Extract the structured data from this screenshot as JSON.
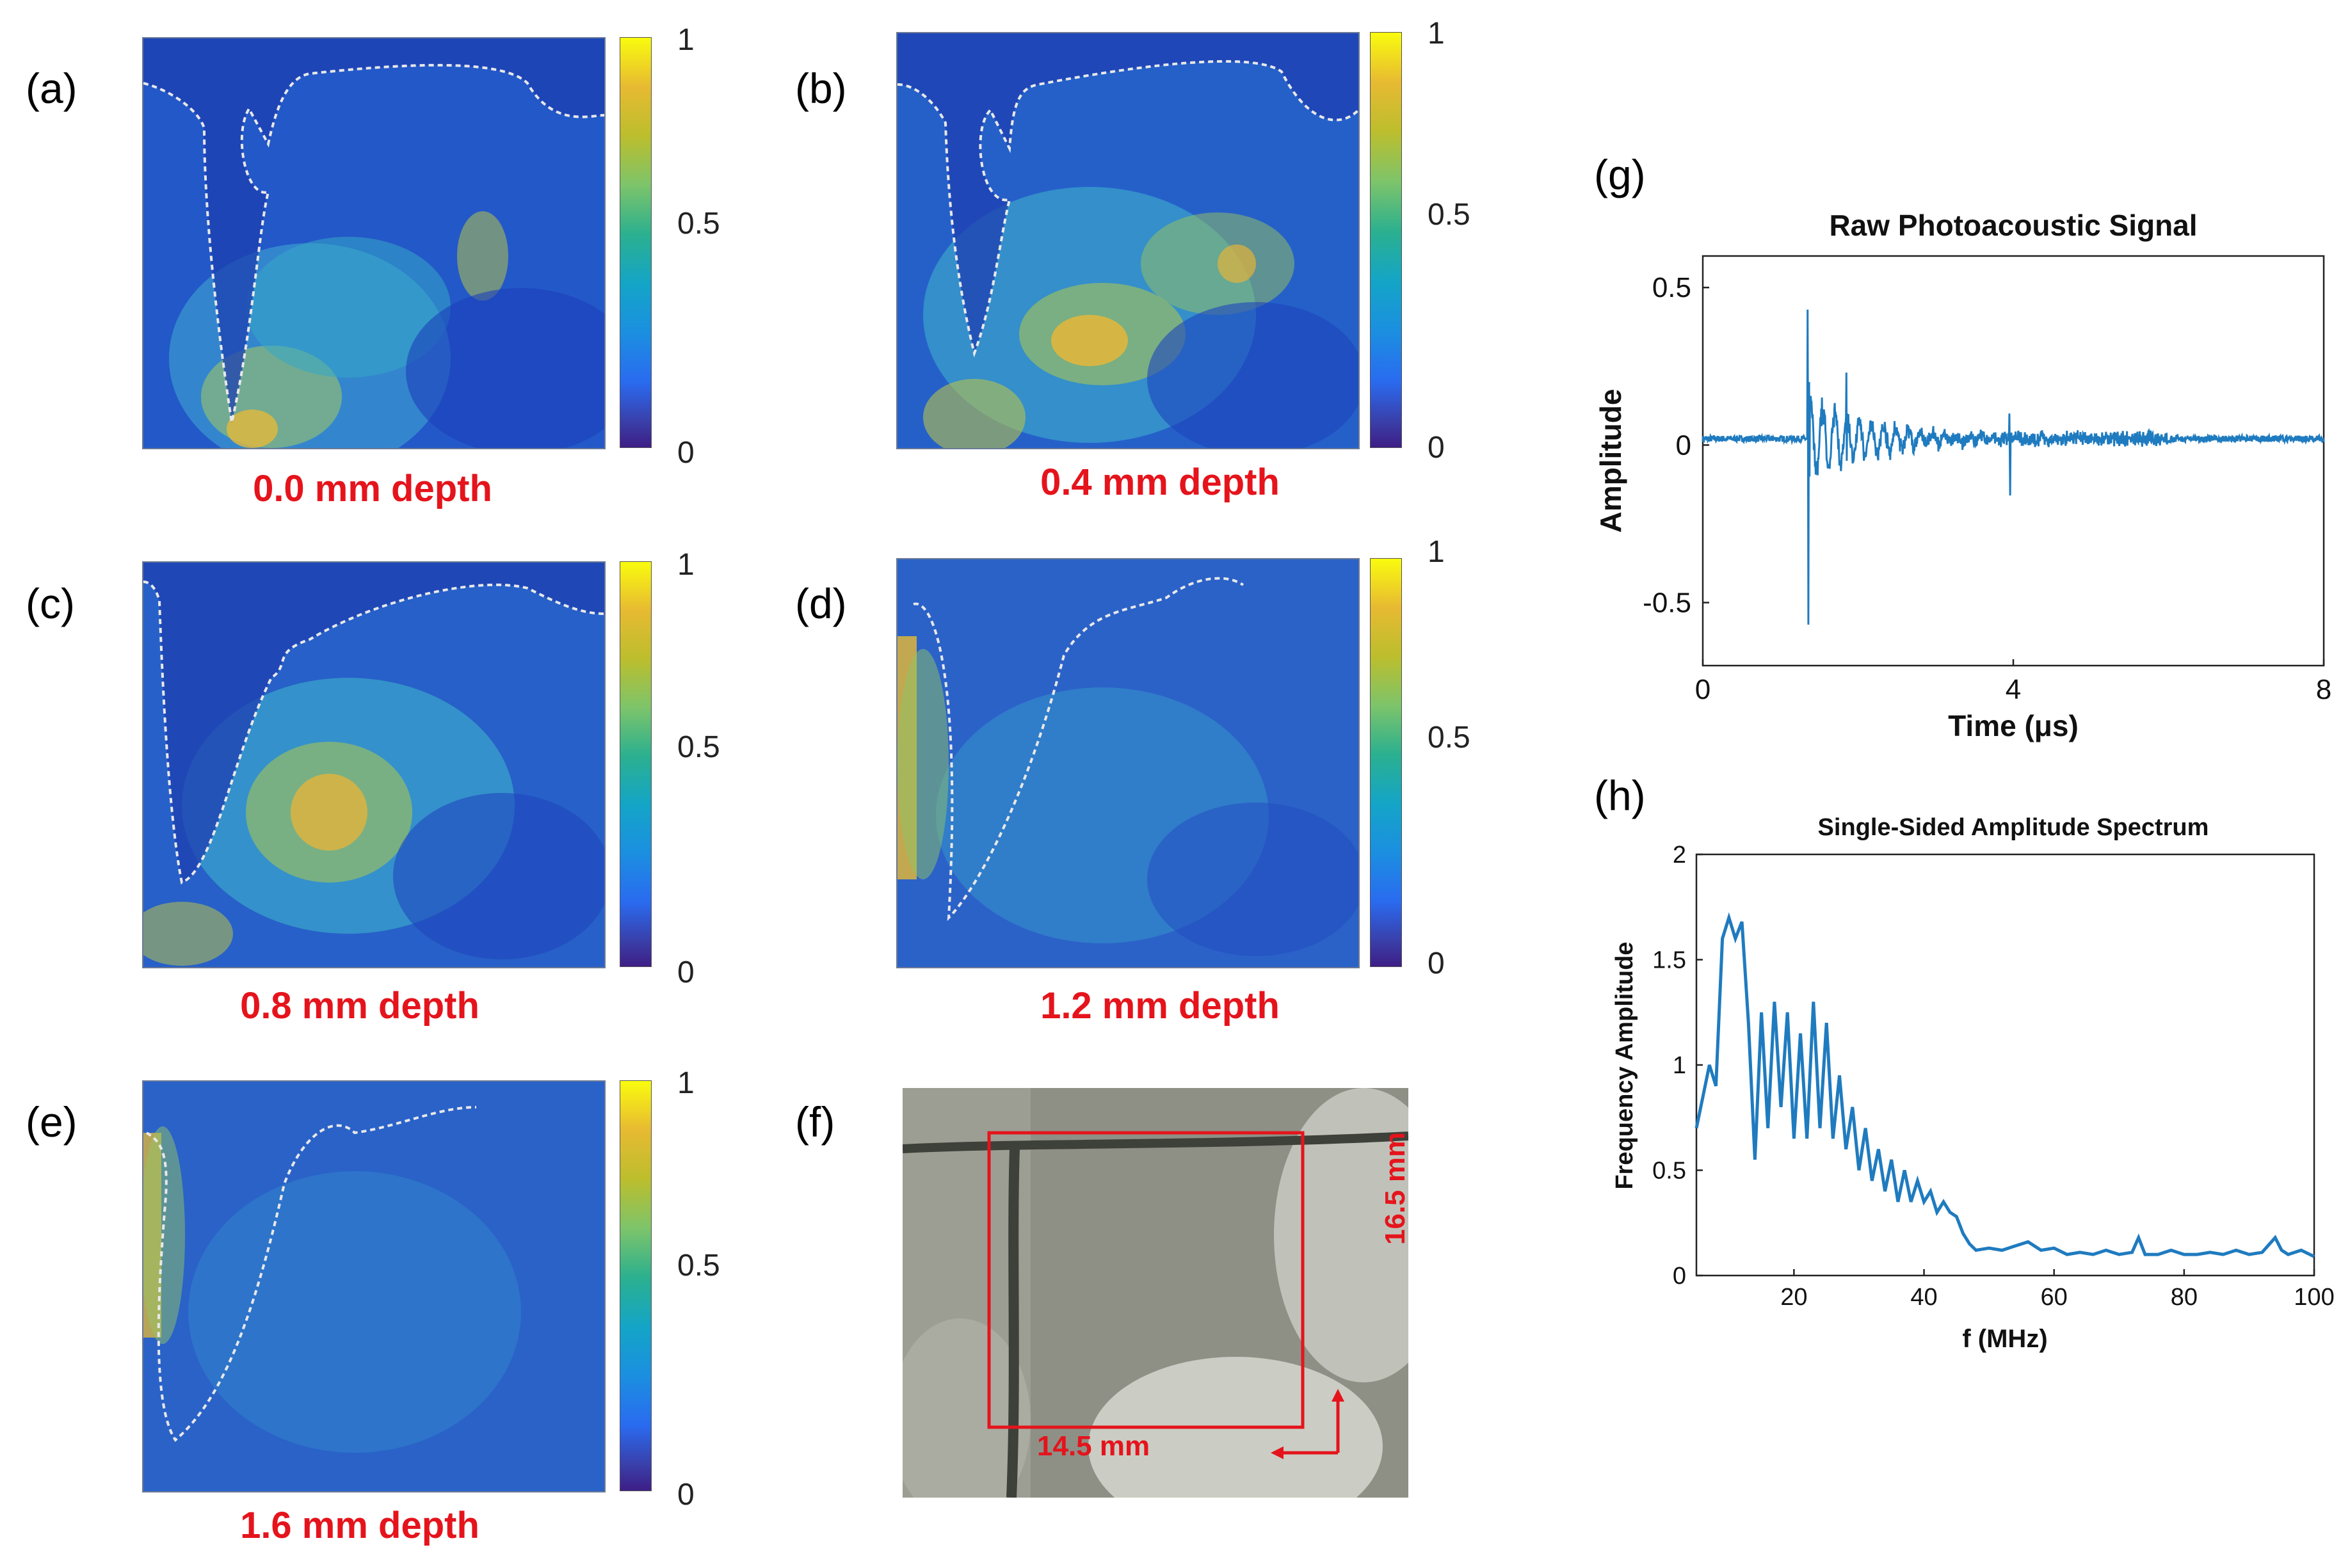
{
  "panels": [
    {
      "letter": "(a)",
      "depth_label": "0.0 mm depth"
    },
    {
      "letter": "(b)",
      "depth_label": "0.4 mm depth"
    },
    {
      "letter": "(c)",
      "depth_label": "0.8 mm depth"
    },
    {
      "letter": "(d)",
      "depth_label": "1.2 mm depth"
    },
    {
      "letter": "(e)",
      "depth_label": "1.6 mm depth"
    }
  ],
  "colorbar": {
    "max": "1",
    "mid": "0.5",
    "min": "0"
  },
  "photo_panel": {
    "letter": "(f)",
    "width_label": "14.5 mm",
    "height_label": "16.5 mm"
  },
  "colors": {
    "signal_line": "#1f7bbf",
    "annotation_red": "#e5141c",
    "dashed_outline": "#e8e8e8"
  },
  "chart_data": [
    {
      "panel": "(g)",
      "type": "line",
      "title": "Raw Photoacoustic Signal",
      "xlabel": "Time (μs)",
      "ylabel": "Amplitude",
      "xlim": [
        0,
        8
      ],
      "ylim": [
        -0.7,
        0.6
      ],
      "xticks": [
        0,
        4,
        8
      ],
      "yticks": [
        0.5,
        0,
        -0.5
      ],
      "xtick_labels": [
        "0",
        "4",
        "8"
      ],
      "ytick_labels": [
        "0.5",
        "0",
        "-0.5"
      ],
      "features": {
        "baseline": 0.02,
        "main_pulse_time": 1.35,
        "main_pulse_max": 0.43,
        "main_pulse_min": -0.57,
        "secondary_spike_time": 1.85,
        "secondary_spike_max": 0.23,
        "late_spike_time": 3.95,
        "late_spike_max": 0.1,
        "late_spike_min": -0.16
      }
    },
    {
      "panel": "(h)",
      "type": "line",
      "title": "Single-Sided Amplitude Spectrum",
      "xlabel": "f (MHz)",
      "ylabel": "Frequency Amplitude",
      "xlim": [
        5,
        100
      ],
      "ylim": [
        0,
        2
      ],
      "xticks": [
        20,
        40,
        60,
        80,
        100
      ],
      "yticks": [
        0,
        0.5,
        1,
        1.5,
        2
      ],
      "xtick_labels": [
        "20",
        "40",
        "60",
        "80",
        "100"
      ],
      "ytick_labels": [
        "0",
        "0.5",
        "1",
        "1.5",
        "2"
      ],
      "x": [
        5,
        6,
        7,
        8,
        9,
        10,
        11,
        12,
        13,
        14,
        15,
        16,
        17,
        18,
        19,
        20,
        21,
        22,
        23,
        24,
        25,
        26,
        27,
        28,
        29,
        30,
        31,
        32,
        33,
        34,
        35,
        36,
        37,
        38,
        39,
        40,
        41,
        42,
        43,
        44,
        45,
        46,
        47,
        48,
        50,
        52,
        54,
        56,
        58,
        60,
        62,
        64,
        66,
        68,
        70,
        72,
        73,
        74,
        76,
        78,
        80,
        82,
        84,
        86,
        88,
        90,
        92,
        94,
        95,
        96,
        98,
        100
      ],
      "y": [
        0.7,
        0.85,
        1.0,
        0.9,
        1.6,
        1.7,
        1.6,
        1.68,
        1.2,
        0.55,
        1.25,
        0.7,
        1.3,
        0.8,
        1.25,
        0.65,
        1.15,
        0.65,
        1.3,
        0.7,
        1.2,
        0.65,
        0.95,
        0.6,
        0.8,
        0.5,
        0.7,
        0.45,
        0.6,
        0.4,
        0.55,
        0.35,
        0.5,
        0.35,
        0.45,
        0.35,
        0.4,
        0.3,
        0.35,
        0.3,
        0.28,
        0.2,
        0.15,
        0.12,
        0.13,
        0.12,
        0.14,
        0.16,
        0.12,
        0.13,
        0.1,
        0.11,
        0.1,
        0.12,
        0.1,
        0.11,
        0.18,
        0.1,
        0.1,
        0.12,
        0.1,
        0.1,
        0.11,
        0.1,
        0.12,
        0.1,
        0.11,
        0.18,
        0.12,
        0.1,
        0.12,
        0.09
      ]
    }
  ]
}
